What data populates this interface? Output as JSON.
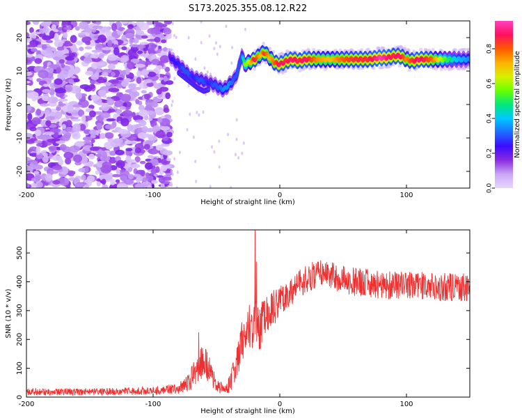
{
  "figure": {
    "title": "S173.2025.355.08.12.R22"
  },
  "colormap": {
    "label": "Normalized spectral amplitude",
    "ticks": [
      "0.0",
      "0.2",
      "0.4",
      "0.6",
      "0.8"
    ],
    "tick_values": [
      0.0,
      0.2,
      0.4,
      0.6,
      0.8
    ],
    "range": [
      0.0,
      0.96
    ],
    "stops": [
      "#e8d6ff",
      "#c9a8f5",
      "#8a2be2",
      "#3b0bff",
      "#1e6bff",
      "#00c8ff",
      "#00e87a",
      "#6bff00",
      "#d8f000",
      "#ffb000",
      "#ff5a00",
      "#ff1060",
      "#ff40c0"
    ]
  },
  "chart_data": [
    {
      "type": "heatmap",
      "title": "",
      "xlabel": "Height of straight line (km)",
      "ylabel": "Frequency (Hz)",
      "xlim": [
        -200,
        150
      ],
      "ylim": [
        -25,
        25
      ],
      "xticks": [
        -200,
        -100,
        0,
        100
      ],
      "yticks": [
        -20,
        -10,
        0,
        10,
        20
      ],
      "xtick_labels": [
        "-200",
        "-100",
        "0",
        "100"
      ],
      "ytick_labels": [
        "-20",
        "-10",
        "0",
        "10",
        "20"
      ],
      "noise_region": {
        "x": [
          -200,
          -87
        ],
        "y": [
          -25,
          25
        ],
        "amplitude": [
          0.02,
          0.18
        ]
      },
      "signal_ridge": {
        "x": [
          -87,
          -84,
          -80,
          -76,
          -72,
          -68,
          -64,
          -60,
          -56,
          -52,
          -48,
          -44,
          -40,
          -36,
          -33,
          -30,
          -28,
          -25,
          -22,
          -20,
          -18,
          -15,
          -12,
          -8,
          -4,
          0,
          5,
          10,
          15,
          20,
          30,
          40,
          50,
          60,
          70,
          80,
          85,
          90,
          95,
          100,
          105,
          110,
          120,
          130,
          140,
          150
        ],
        "frequency_hz": [
          14.5,
          13.0,
          12.0,
          10.5,
          9.0,
          8.0,
          7.5,
          7.0,
          6.5,
          6.0,
          5.0,
          4.5,
          6.0,
          7.5,
          10.0,
          15.0,
          12.0,
          12.5,
          13.0,
          13.5,
          14.0,
          15.0,
          15.5,
          14.0,
          12.5,
          12.0,
          13.0,
          13.5,
          13.0,
          13.5,
          13.5,
          13.5,
          13.5,
          13.5,
          13.5,
          14.0,
          14.0,
          14.5,
          14.5,
          13.5,
          13.0,
          13.5,
          13.5,
          13.5,
          13.5,
          13.5
        ],
        "amplitude": [
          0.2,
          0.25,
          0.25,
          0.3,
          0.3,
          0.25,
          0.3,
          0.3,
          0.25,
          0.3,
          0.3,
          0.35,
          0.35,
          0.3,
          0.3,
          0.3,
          0.55,
          0.6,
          0.75,
          0.9,
          0.8,
          0.7,
          0.85,
          0.7,
          0.8,
          0.9,
          0.85,
          0.9,
          0.85,
          0.9,
          0.75,
          0.7,
          0.8,
          0.85,
          0.85,
          0.95,
          0.9,
          0.85,
          0.9,
          0.75,
          0.85,
          0.9,
          0.8,
          0.55,
          0.4,
          0.35
        ]
      },
      "secondary_ridge": {
        "x": [
          -80,
          -75,
          -70,
          -65,
          -60,
          -56
        ],
        "frequency_hz": [
          9.5,
          8.0,
          6.5,
          5.0,
          4.0,
          4.5
        ]
      }
    },
    {
      "type": "line",
      "title": "",
      "xlabel": "Height of straight line (km)",
      "ylabel": "SNR (10 * v/v)",
      "xlim": [
        -200,
        150
      ],
      "ylim": [
        0,
        580
      ],
      "xticks": [
        -200,
        -100,
        0,
        100
      ],
      "yticks": [
        0,
        100,
        200,
        300,
        400,
        500
      ],
      "xtick_labels": [
        "-200",
        "-100",
        "0",
        "100"
      ],
      "ytick_labels": [
        "0",
        "100",
        "200",
        "300",
        "400",
        "500"
      ],
      "color": "#ee3030",
      "series": [
        {
          "name": "SNR",
          "envelope_x": [
            -200,
            -150,
            -100,
            -80,
            -72,
            -66,
            -62,
            -58,
            -54,
            -50,
            -46,
            -42,
            -38,
            -34,
            -30,
            -26,
            -24,
            -22,
            -20,
            -18,
            -16,
            -14,
            -10,
            -6,
            -2,
            0,
            5,
            10,
            15,
            20,
            25,
            30,
            35,
            40,
            45,
            50,
            60,
            70,
            80,
            90,
            100,
            110,
            120,
            130,
            140,
            150
          ],
          "envelope_y": [
            18,
            18,
            22,
            30,
            50,
            90,
            120,
            110,
            80,
            45,
            30,
            28,
            60,
            120,
            180,
            210,
            230,
            250,
            300,
            260,
            240,
            260,
            280,
            300,
            330,
            340,
            350,
            370,
            390,
            410,
            420,
            430,
            425,
            420,
            415,
            410,
            400,
            395,
            390,
            385,
            385,
            385,
            385,
            380,
            380,
            380
          ],
          "noise_amplitude": [
            12,
            12,
            14,
            18,
            35,
            50,
            60,
            55,
            45,
            25,
            20,
            20,
            40,
            60,
            70,
            80,
            80,
            85,
            100,
            90,
            80,
            80,
            70,
            70,
            60,
            55,
            50,
            50,
            50,
            50,
            50,
            50,
            50,
            50,
            50,
            50,
            50,
            50,
            50,
            50,
            50,
            50,
            50,
            50,
            50,
            50
          ],
          "spikes": [
            {
              "x": -19.5,
              "y": 580
            },
            {
              "x": -18.5,
              "y": 470
            },
            {
              "x": -24,
              "y": 320
            },
            {
              "x": -64,
              "y": 225
            },
            {
              "x": -30,
              "y": 260
            }
          ]
        }
      ]
    }
  ]
}
